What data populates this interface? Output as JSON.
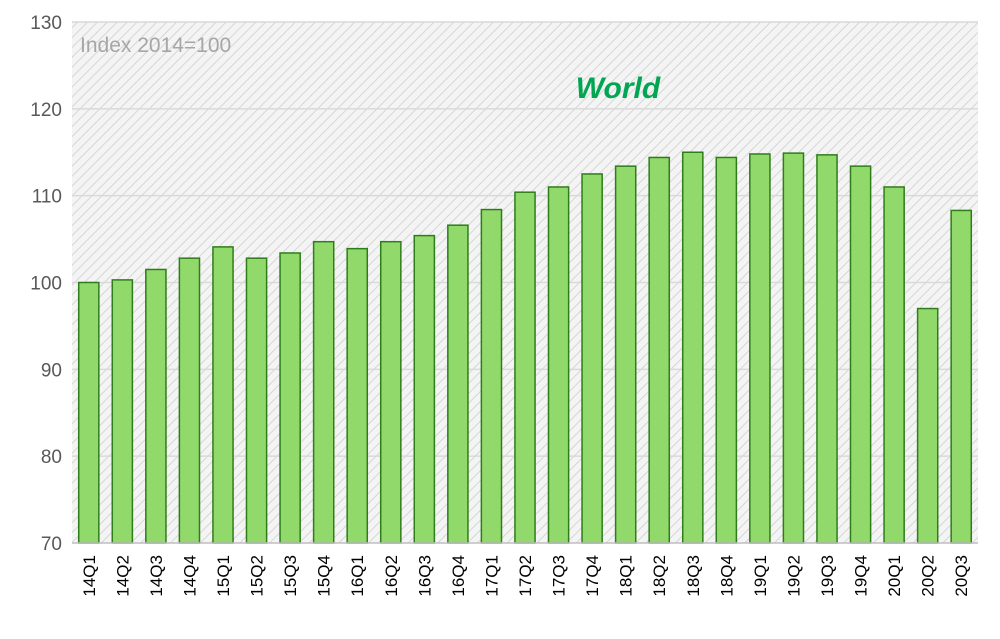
{
  "chart_data": {
    "type": "bar",
    "title": "World",
    "annotation": "Index 2014=100",
    "xlabel": "",
    "ylabel": "",
    "ylim": [
      70,
      130
    ],
    "yticks": [
      70,
      80,
      90,
      100,
      110,
      120,
      130
    ],
    "grid": true,
    "legend": "none",
    "categories": [
      "14Q1",
      "14Q2",
      "14Q3",
      "14Q4",
      "15Q1",
      "15Q2",
      "15Q3",
      "15Q4",
      "16Q1",
      "16Q2",
      "16Q3",
      "16Q4",
      "17Q1",
      "17Q2",
      "17Q3",
      "17Q4",
      "18Q1",
      "18Q2",
      "18Q3",
      "18Q4",
      "19Q1",
      "19Q2",
      "19Q3",
      "19Q4",
      "20Q1",
      "20Q2",
      "20Q3"
    ],
    "values": [
      100.0,
      100.3,
      101.5,
      102.8,
      104.1,
      102.8,
      103.4,
      104.7,
      103.9,
      104.7,
      105.4,
      106.6,
      108.4,
      110.4,
      111.0,
      112.5,
      113.4,
      114.4,
      115.0,
      114.4,
      114.8,
      114.9,
      114.7,
      113.4,
      111.0,
      97.0,
      108.3
    ],
    "colors": {
      "bar_fill": "#92d96c",
      "bar_stroke": "#2e7d1a",
      "title": "#00a651",
      "grid": "#d9d9d9",
      "plot_background": "#f2f2f2",
      "hatch": "#d0d0d0"
    }
  }
}
